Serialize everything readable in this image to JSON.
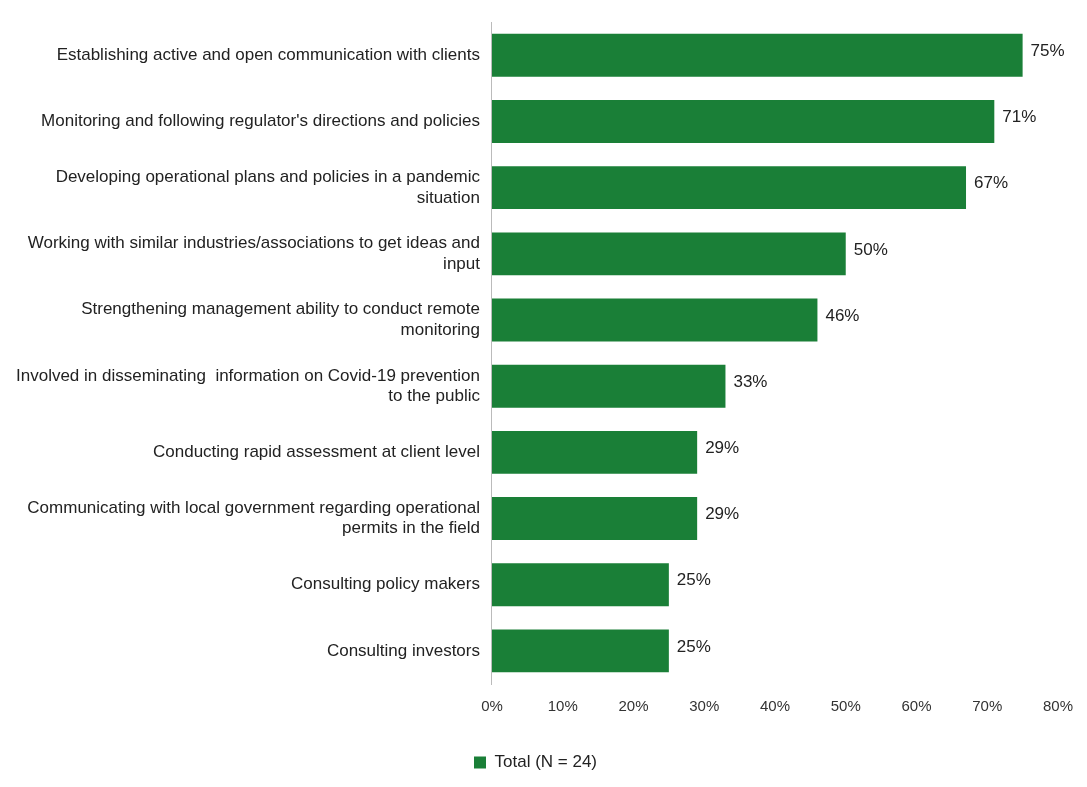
{
  "chart_data": {
    "type": "bar",
    "orientation": "horizontal",
    "categories": [
      "Establishing active and open communication with clients",
      "Monitoring and following regulator's directions and policies",
      "Developing operational plans and policies in a pandemic situation",
      "Working with similar industries/associations to get ideas and input",
      "Strengthening management ability to conduct remote monitoring",
      "Involved in disseminating  information on Covid-19 prevention to the public",
      "Conducting rapid assessment at client level",
      "Communicating with local government regarding operational permits in the field",
      "Consulting policy makers",
      "Consulting investors"
    ],
    "series": [
      {
        "name": "Total (N = 24)",
        "color": "#1a7f37",
        "values": [
          75,
          71,
          67,
          50,
          46,
          33,
          29,
          29,
          25,
          25
        ],
        "value_labels": [
          "75%",
          "71%",
          "67%",
          "50%",
          "46%",
          "33%",
          "29%",
          "29%",
          "25%",
          "25%"
        ]
      }
    ],
    "xlim": [
      0,
      80
    ],
    "xticks": [
      {
        "value": 0,
        "label": "0%"
      },
      {
        "value": 10,
        "label": "10%"
      },
      {
        "value": 20,
        "label": "20%"
      },
      {
        "value": 30,
        "label": "30%"
      },
      {
        "value": 40,
        "label": "40%"
      },
      {
        "value": 50,
        "label": "50%"
      },
      {
        "value": 60,
        "label": "60%"
      },
      {
        "value": 70,
        "label": "70%"
      },
      {
        "value": 80,
        "label": "80%"
      }
    ],
    "grid": false,
    "legend": "bottom"
  }
}
